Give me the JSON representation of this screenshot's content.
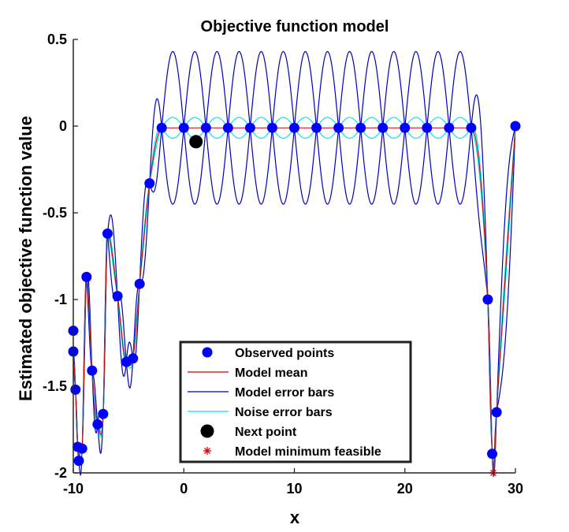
{
  "chart_data": {
    "type": "line",
    "title": "Objective function model",
    "xlabel": "x",
    "ylabel": "Estimated objective function value",
    "xlim": [
      -10,
      30
    ],
    "ylim": [
      -2,
      0.5
    ],
    "xticks": [
      -10,
      0,
      10,
      20,
      30
    ],
    "xtick_labels": [
      "-10",
      "0",
      "10",
      "20",
      "30"
    ],
    "yticks": [
      -2,
      -1.5,
      -1,
      -0.5,
      0,
      0.5
    ],
    "ytick_labels": [
      "-2",
      "-1.5",
      "-1",
      "-0.5",
      "0",
      "0.5"
    ],
    "grid": false,
    "legend_position": "bottom-center",
    "legend": [
      {
        "label": "Observed points",
        "style": "marker",
        "color": "#0000ff"
      },
      {
        "label": "Model mean",
        "style": "line",
        "color": "#cc0000"
      },
      {
        "label": "Model error bars",
        "style": "line",
        "color": "#0000bb"
      },
      {
        "label": "Noise error bars",
        "style": "line",
        "color": "#00e5ee"
      },
      {
        "label": "Next point",
        "style": "marker",
        "color": "#000000"
      },
      {
        "label": "Model minimum feasible",
        "style": "star",
        "color": "#dd0000"
      }
    ],
    "observed_points": {
      "x": [
        -10,
        -10,
        -9.8,
        -9.6,
        -9.5,
        -9.2,
        -8.8,
        -8.3,
        -7.8,
        -7.3,
        -6.9,
        -6.0,
        -5.2,
        -4.6,
        -4.0,
        -3.1,
        -2.0,
        0,
        2,
        4,
        6,
        8,
        10,
        12,
        14,
        16,
        18,
        20,
        22,
        24,
        26,
        27.5,
        27.9,
        28.3,
        30
      ],
      "y": [
        -1.18,
        -1.3,
        -1.52,
        -1.85,
        -1.93,
        -1.86,
        -0.87,
        -1.41,
        -1.72,
        -1.66,
        -0.62,
        -0.98,
        -1.36,
        -1.34,
        -0.91,
        -0.33,
        -0.01,
        -0.01,
        -0.01,
        -0.01,
        -0.01,
        -0.01,
        -0.01,
        -0.01,
        -0.01,
        -0.01,
        -0.01,
        -0.01,
        -0.01,
        -0.01,
        -0.01,
        -1.0,
        -1.89,
        -1.65,
        0.0
      ]
    },
    "next_point": {
      "x": 1.1,
      "y": -0.09
    },
    "model_minimum_feasible": {
      "x": 28,
      "y": -2.0
    },
    "colors": {
      "observed": "#0000ff",
      "model_mean": "#cc0000",
      "model_error": "#0000bb",
      "noise_error": "#00e5ee",
      "next_point": "#000000",
      "minimum": "#dd0000"
    }
  }
}
